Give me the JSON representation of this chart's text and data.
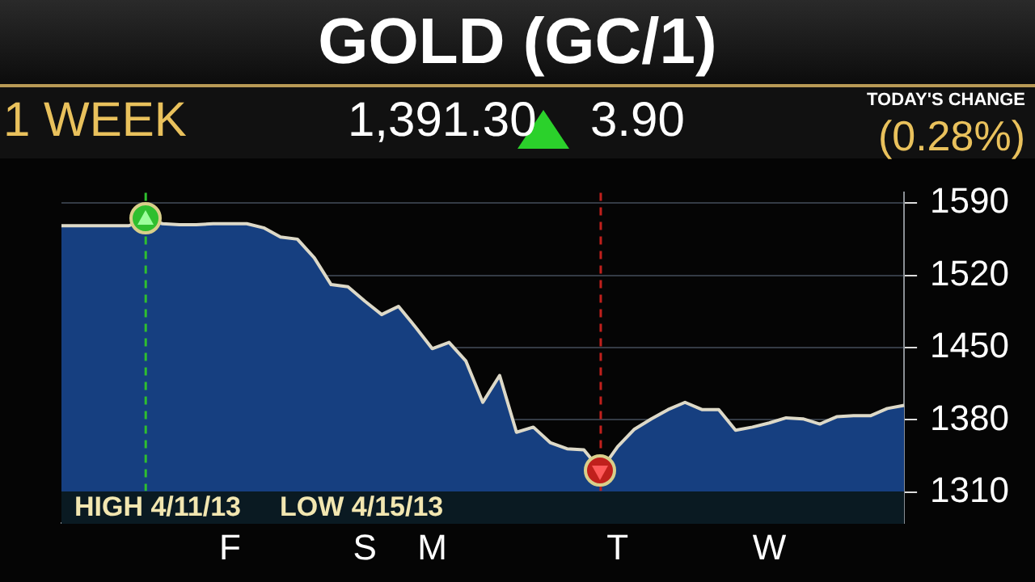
{
  "chart_data": {
    "type": "area",
    "title": "GOLD (GC/1)",
    "subtitle": "1 WEEK",
    "annotations": [
      "1,391.30",
      "3.90",
      "TODAY'S CHANGE",
      "(0.28%)",
      "HIGH 4/11/13",
      "LOW 4/15/13"
    ],
    "categories": [
      null,
      null,
      null,
      null,
      null,
      null,
      null,
      null,
      null,
      null,
      "F",
      null,
      null,
      null,
      null,
      null,
      null,
      null,
      "S",
      null,
      null,
      null,
      "M",
      null,
      null,
      null,
      null,
      null,
      null,
      null,
      null,
      null,
      null,
      "T",
      null,
      null,
      null,
      null,
      null,
      null,
      null,
      null,
      "W",
      null,
      null,
      null,
      null,
      null,
      null,
      null,
      null
    ],
    "series": [
      {
        "color": "#163f80",
        "values": [
          1568,
          1568,
          1568,
          1568,
          1568,
          1575,
          1570,
          1569,
          1569,
          1570,
          1570,
          1570,
          1566,
          1557,
          1555,
          1537,
          1511,
          1509,
          1495,
          1482,
          1490,
          1470,
          1449,
          1455,
          1437,
          1397,
          1423,
          1368,
          1373,
          1358,
          1352,
          1351,
          1331,
          1354,
          1371,
          1381,
          1390,
          1397,
          1390,
          1390,
          1370,
          1373,
          1377,
          1382,
          1381,
          1376,
          1383,
          1384,
          1384,
          1391,
          1394
        ]
      }
    ],
    "ylim": [
      1280,
      1600
    ],
    "yticks": [
      1310,
      1380,
      1450,
      1520,
      1590
    ],
    "grid": "y",
    "legend": false
  }
}
